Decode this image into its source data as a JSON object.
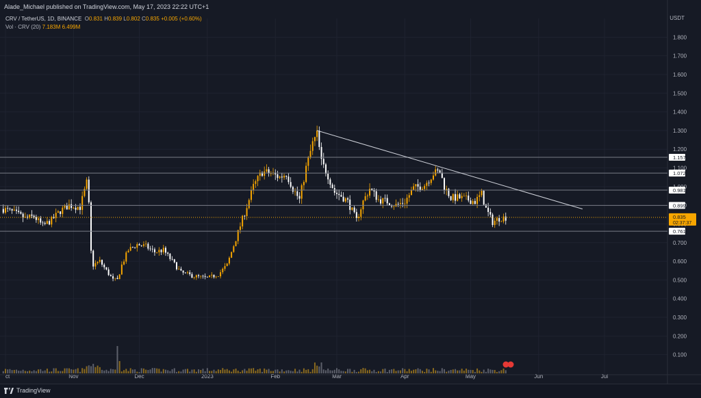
{
  "header": {
    "published_line": "Alade_Michael published on TradingView.com, May 17, 2023 22:22 UTC+1"
  },
  "legend": {
    "symbol": "CRV / TetherUS, 1D, BINANCE",
    "o_label": "O",
    "open": "0.831",
    "h_label": "H",
    "high": "0.839",
    "l_label": "L",
    "low": "0.802",
    "c_label": "C",
    "close": "0.835",
    "change": "+0.005 (+0.60%)",
    "vol_label": "Vol · CRV (20)",
    "vol_value": "7.183M",
    "vol_ma": "6.499M"
  },
  "currency_label": "USDT",
  "footer": {
    "brand": "TradingView"
  },
  "colors": {
    "background": "#161a25",
    "up_candle": "#f7a600",
    "down_candle": "#ffffff",
    "grid": "#1f2330",
    "level_line": "#7a7d87",
    "current_price": "#f7a600",
    "trendline": "#d1d4dc"
  },
  "chart_data": {
    "type": "candlestick",
    "symbol": "CRV / TetherUS",
    "timeframe": "1D",
    "exchange": "BINANCE",
    "ylim": [
      0.0,
      1.9
    ],
    "y_ticks": [
      "1.800",
      "1.700",
      "1.600",
      "1.500",
      "1.400",
      "1.300",
      "1.200",
      "1.100",
      "1.000",
      "0.900",
      "0.800",
      "0.700",
      "0.600",
      "0.500",
      "0.400",
      "0.300",
      "0.200",
      "0.100"
    ],
    "x_ticks": [
      "Oct",
      "Nov",
      "Dec",
      "2023",
      "Feb",
      "Mar",
      "Apr",
      "May",
      "Jun",
      "Jul"
    ],
    "horizontal_levels": [
      {
        "value": 1.157,
        "label": "1.157"
      },
      {
        "value": 1.072,
        "label": "1.072"
      },
      {
        "value": 0.981,
        "label": "0.981"
      },
      {
        "value": 0.899,
        "label": "0.899"
      },
      {
        "value": 0.761,
        "label": "0.761"
      }
    ],
    "current_price": {
      "value": 0.835,
      "label": "0.835",
      "countdown": "02:37:37"
    },
    "trendline": {
      "from": {
        "date": "2023-02-20",
        "price": 1.3
      },
      "to": {
        "date": "2023-06-21",
        "price": 0.88
      }
    },
    "price_path": [
      [
        "2022-09-30",
        0.88
      ],
      [
        "2022-10-05",
        0.86
      ],
      [
        "2022-10-10",
        0.83
      ],
      [
        "2022-10-14",
        0.84
      ],
      [
        "2022-10-18",
        0.79
      ],
      [
        "2022-10-22",
        0.82
      ],
      [
        "2022-10-26",
        0.87
      ],
      [
        "2022-10-30",
        0.9
      ],
      [
        "2022-11-04",
        0.89
      ],
      [
        "2022-11-07",
        1.02
      ],
      [
        "2022-11-08",
        0.9
      ],
      [
        "2022-11-09",
        0.65
      ],
      [
        "2022-11-10",
        0.58
      ],
      [
        "2022-11-13",
        0.6
      ],
      [
        "2022-11-16",
        0.55
      ],
      [
        "2022-11-19",
        0.5
      ],
      [
        "2022-11-21",
        0.5
      ],
      [
        "2022-11-23",
        0.58
      ],
      [
        "2022-11-26",
        0.66
      ],
      [
        "2022-11-30",
        0.69
      ],
      [
        "2022-12-04",
        0.68
      ],
      [
        "2022-12-08",
        0.65
      ],
      [
        "2022-12-12",
        0.66
      ],
      [
        "2022-12-16",
        0.6
      ],
      [
        "2022-12-20",
        0.54
      ],
      [
        "2022-12-26",
        0.52
      ],
      [
        "2023-01-01",
        0.51
      ],
      [
        "2023-01-06",
        0.53
      ],
      [
        "2023-01-10",
        0.58
      ],
      [
        "2023-01-14",
        0.72
      ],
      [
        "2023-01-18",
        0.86
      ],
      [
        "2023-01-22",
        1.0
      ],
      [
        "2023-01-26",
        1.08
      ],
      [
        "2023-01-30",
        1.07
      ],
      [
        "2023-02-03",
        1.05
      ],
      [
        "2023-02-06",
        1.07
      ],
      [
        "2023-02-09",
        0.99
      ],
      [
        "2023-02-12",
        0.93
      ],
      [
        "2023-02-15",
        1.1
      ],
      [
        "2023-02-18",
        1.23
      ],
      [
        "2023-02-20",
        1.28
      ],
      [
        "2023-02-22",
        1.13
      ],
      [
        "2023-02-25",
        1.06
      ],
      [
        "2023-02-28",
        0.97
      ],
      [
        "2023-03-03",
        0.95
      ],
      [
        "2023-03-06",
        0.92
      ],
      [
        "2023-03-10",
        0.82
      ],
      [
        "2023-03-13",
        0.92
      ],
      [
        "2023-03-16",
        0.99
      ],
      [
        "2023-03-20",
        0.93
      ],
      [
        "2023-03-24",
        0.92
      ],
      [
        "2023-03-28",
        0.9
      ],
      [
        "2023-04-01",
        0.92
      ],
      [
        "2023-04-05",
        0.99
      ],
      [
        "2023-04-10",
        1.01
      ],
      [
        "2023-04-14",
        1.07
      ],
      [
        "2023-04-17",
        1.08
      ],
      [
        "2023-04-19",
        1.0
      ],
      [
        "2023-04-22",
        0.94
      ],
      [
        "2023-04-26",
        0.94
      ],
      [
        "2023-04-30",
        0.93
      ],
      [
        "2023-05-03",
        0.92
      ],
      [
        "2023-05-06",
        0.96
      ],
      [
        "2023-05-08",
        0.88
      ],
      [
        "2023-05-11",
        0.81
      ],
      [
        "2023-05-14",
        0.83
      ],
      [
        "2023-05-17",
        0.835
      ]
    ]
  }
}
